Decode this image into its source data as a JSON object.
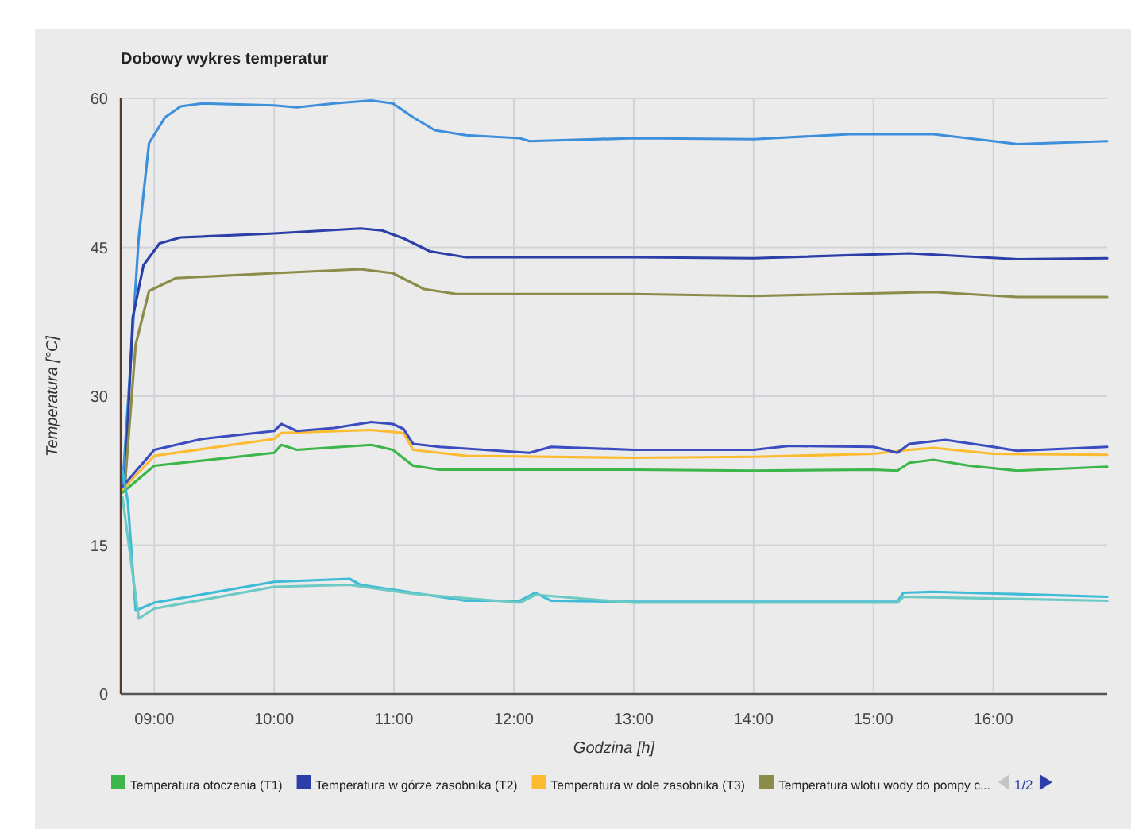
{
  "chart_data": {
    "type": "line",
    "title": "Dobowy wykres temperatur",
    "xlabel": "Godzina [h]",
    "ylabel": "Temperatura [°C]",
    "xlim": [
      8.72,
      16.95
    ],
    "ylim": [
      0,
      60
    ],
    "xticks": [
      {
        "value": 9,
        "label": "09:00"
      },
      {
        "value": 10,
        "label": "10:00"
      },
      {
        "value": 11,
        "label": "11:00"
      },
      {
        "value": 12,
        "label": "12:00"
      },
      {
        "value": 13,
        "label": "13:00"
      },
      {
        "value": 14,
        "label": "14:00"
      },
      {
        "value": 15,
        "label": "15:00"
      },
      {
        "value": 16,
        "label": "16:00"
      }
    ],
    "yticks": [
      0,
      15,
      30,
      45,
      60
    ],
    "grid": true,
    "legend": "bottom",
    "marker": "none",
    "line_style": "solid",
    "annotations": [
      "1/2"
    ],
    "series": [
      {
        "name": "Temperatura otoczenia (T1)",
        "color": "#3cb54a",
        "x": [
          8.735,
          9,
          10,
          10.06,
          10.19,
          10.81,
          10.99,
          11.16,
          11.38,
          13,
          14,
          15,
          15.2,
          15.3,
          15.5,
          15.8,
          16.2,
          16.95
        ],
        "values": [
          20.3,
          23,
          24.3,
          25.1,
          24.6,
          25.1,
          24.6,
          23,
          22.6,
          22.6,
          22.5,
          22.6,
          22.5,
          23.3,
          23.6,
          23,
          22.5,
          22.9
        ]
      },
      {
        "color": "#3d8fdc",
        "x": [
          8.735,
          8.87,
          8.956,
          9.09,
          9.22,
          9.4,
          10,
          10.19,
          10.5,
          10.81,
          10.99,
          11.16,
          11.34,
          11.6,
          12.05,
          12.13,
          13,
          14,
          14.8,
          15.5,
          16,
          16.2,
          16.95
        ],
        "values": [
          20.9,
          45.9,
          55.5,
          58.1,
          59.2,
          59.5,
          59.3,
          59.1,
          59.5,
          59.8,
          59.5,
          58.1,
          56.8,
          56.3,
          56,
          55.7,
          56,
          55.9,
          56.4,
          56.4,
          55.7,
          55.4,
          55.7
        ]
      },
      {
        "name": "Temperatura w górze zasobnika (T2)",
        "color": "#2c3fa8",
        "x": [
          8.757,
          8.82,
          8.91,
          9.044,
          9.22,
          10,
          10.72,
          10.9,
          11.08,
          11.3,
          11.6,
          13,
          14,
          15.3,
          16.2,
          16.95
        ],
        "values": [
          21.4,
          37.9,
          43.2,
          45.4,
          46,
          46.4,
          46.9,
          46.7,
          45.9,
          44.6,
          44,
          44,
          43.9,
          44.4,
          43.8,
          43.9
        ]
      },
      {
        "name": "Temperatura w dole zasobnika (T3)",
        "color": "#fdbb30",
        "x": [
          8.735,
          9,
          10,
          10.06,
          10.81,
          11.08,
          11.16,
          11.6,
          13,
          14,
          15,
          15.3,
          15.5,
          16,
          16.95
        ],
        "values": [
          20.6,
          24,
          25.7,
          26.3,
          26.6,
          26.3,
          24.6,
          24,
          23.8,
          23.9,
          24.2,
          24.6,
          24.8,
          24.2,
          24.1
        ]
      },
      {
        "name": "Temperatura wlotu wody do pompy c...",
        "color": "#8c8c4a",
        "x": [
          8.757,
          8.845,
          8.956,
          9.18,
          10,
          10.72,
          10.99,
          11.25,
          11.52,
          13,
          14,
          15.5,
          16.2,
          16.95
        ],
        "values": [
          21.4,
          35.2,
          40.6,
          41.9,
          42.4,
          42.8,
          42.4,
          40.8,
          40.3,
          40.3,
          40.1,
          40.5,
          40,
          40
        ]
      },
      {
        "color": "#3a4cc0",
        "x": [
          8.735,
          9,
          9.4,
          10,
          10.06,
          10.19,
          10.5,
          10.81,
          10.99,
          11.08,
          11.16,
          11.38,
          12.13,
          12.31,
          13,
          14,
          14.3,
          15,
          15.2,
          15.3,
          15.6,
          16,
          16.2,
          16.95
        ],
        "values": [
          20.9,
          24.6,
          25.7,
          26.5,
          27.2,
          26.5,
          26.8,
          27.4,
          27.2,
          26.7,
          25.2,
          24.9,
          24.3,
          24.9,
          24.6,
          24.6,
          25,
          24.9,
          24.3,
          25.2,
          25.6,
          24.9,
          24.5,
          24.9
        ]
      },
      {
        "color": "#3fbbd8",
        "x": [
          8.735,
          8.78,
          8.845,
          9,
          10,
          10.63,
          10.72,
          11.16,
          11.6,
          12.05,
          12.18,
          12.31,
          13,
          14,
          15.2,
          15.25,
          15.5,
          16.95
        ],
        "values": [
          22.5,
          19.3,
          8.4,
          9.2,
          11.3,
          11.6,
          11,
          10.2,
          9.4,
          9.4,
          10.2,
          9.4,
          9.3,
          9.3,
          9.3,
          10.2,
          10.3,
          9.8
        ]
      },
      {
        "color": "#6cc9c4",
        "x": [
          8.735,
          8.87,
          9,
          10,
          10.63,
          11.16,
          12.05,
          12.18,
          13,
          14,
          15.2,
          15.25,
          16.95
        ],
        "values": [
          19.8,
          7.6,
          8.6,
          10.8,
          11,
          10.1,
          9.2,
          10,
          9.2,
          9.2,
          9.2,
          9.8,
          9.4
        ]
      }
    ]
  }
}
